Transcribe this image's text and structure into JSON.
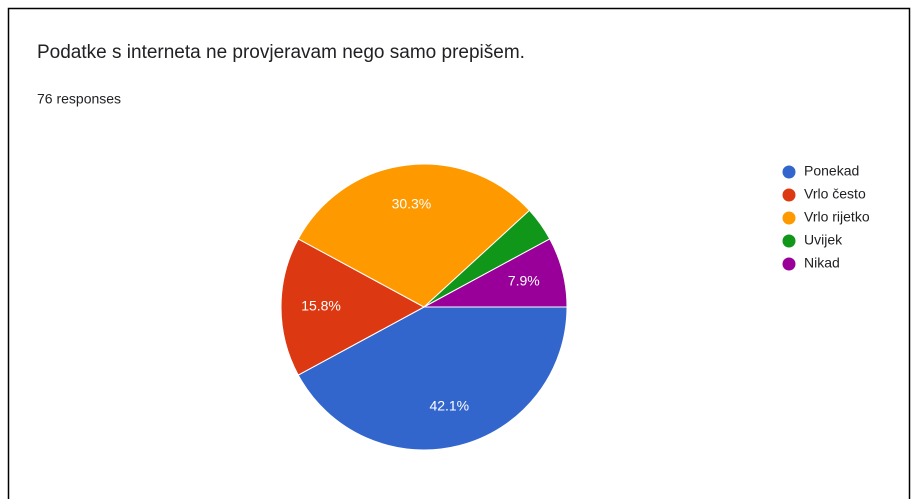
{
  "chart_data": {
    "type": "pie",
    "title": "Podatke s interneta ne provjeravam nego samo prepišem.",
    "subtitle": "76 responses",
    "categories": [
      "Ponekad",
      "Vrlo često",
      "Vrlo rijetko",
      "Uvijek",
      "Nikad"
    ],
    "values": [
      42.1,
      15.8,
      30.3,
      3.9,
      7.9
    ],
    "value_labels": [
      "42.1%",
      "15.8%",
      "30.3%",
      null,
      "7.9%"
    ],
    "colors": [
      "#3366cc",
      "#dc3912",
      "#ff9900",
      "#109618",
      "#990099"
    ],
    "legend": "right"
  }
}
